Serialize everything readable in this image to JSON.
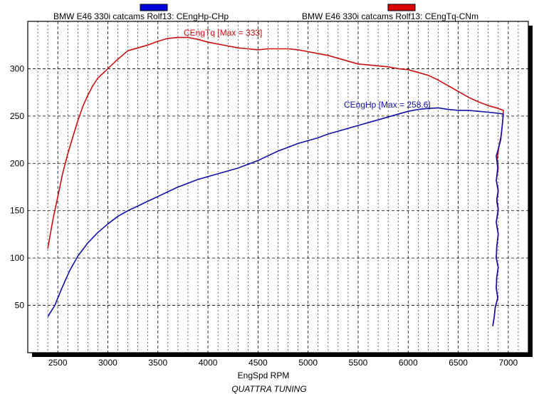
{
  "chart_data": {
    "type": "line",
    "xlabel": "EngSpd RPM",
    "ylabel": "",
    "footer": "QUATTRA TUNING",
    "xlim": [
      2200,
      7200
    ],
    "ylim": [
      0,
      350
    ],
    "x_ticks": [
      2500,
      3000,
      3500,
      4000,
      4500,
      5000,
      5500,
      6000,
      6500,
      7000
    ],
    "y_ticks": [
      50,
      100,
      150,
      200,
      250,
      300
    ],
    "grid": true,
    "legend_position": "top",
    "series": [
      {
        "name": "BMW E46 330i catcams Rolf13: CEngHp-CHp",
        "color": "#1010aa",
        "legend_color": "#0000dd",
        "annotation": "CEngHp [Max = 258.6]",
        "points": [
          [
            2400,
            38
          ],
          [
            2470,
            50
          ],
          [
            2540,
            68
          ],
          [
            2620,
            87
          ],
          [
            2700,
            102
          ],
          [
            2800,
            116
          ],
          [
            2900,
            127
          ],
          [
            3000,
            136
          ],
          [
            3100,
            144
          ],
          [
            3200,
            150
          ],
          [
            3300,
            155
          ],
          [
            3400,
            160
          ],
          [
            3500,
            165
          ],
          [
            3600,
            170
          ],
          [
            3700,
            175
          ],
          [
            3800,
            179
          ],
          [
            3900,
            183
          ],
          [
            4000,
            186
          ],
          [
            4100,
            189
          ],
          [
            4200,
            192
          ],
          [
            4300,
            195
          ],
          [
            4400,
            199
          ],
          [
            4500,
            203
          ],
          [
            4600,
            208
          ],
          [
            4700,
            213
          ],
          [
            4800,
            217
          ],
          [
            4900,
            221
          ],
          [
            5000,
            224
          ],
          [
            5100,
            227
          ],
          [
            5200,
            231
          ],
          [
            5300,
            234
          ],
          [
            5400,
            237
          ],
          [
            5500,
            240
          ],
          [
            5600,
            243
          ],
          [
            5700,
            246
          ],
          [
            5800,
            249
          ],
          [
            5900,
            252
          ],
          [
            6000,
            255
          ],
          [
            6100,
            257
          ],
          [
            6200,
            258
          ],
          [
            6300,
            258.6
          ],
          [
            6400,
            257
          ],
          [
            6500,
            256
          ],
          [
            6600,
            256
          ],
          [
            6700,
            255
          ],
          [
            6800,
            254
          ],
          [
            6900,
            253
          ],
          [
            6950,
            252
          ],
          [
            6940,
            240
          ],
          [
            6925,
            225
          ],
          [
            6900,
            215
          ],
          [
            6880,
            208
          ],
          [
            6895,
            195
          ],
          [
            6880,
            182
          ],
          [
            6900,
            172
          ],
          [
            6885,
            162
          ],
          [
            6900,
            152
          ],
          [
            6880,
            138
          ],
          [
            6900,
            125
          ],
          [
            6885,
            112
          ],
          [
            6880,
            100
          ],
          [
            6900,
            90
          ],
          [
            6885,
            80
          ],
          [
            6880,
            68
          ],
          [
            6895,
            58
          ],
          [
            6870,
            48
          ],
          [
            6860,
            38
          ],
          [
            6845,
            28
          ]
        ]
      },
      {
        "name": "BMW E46 330i catcams Rolf13: CEngTq-CNm",
        "color": "#cc1010",
        "legend_color": "#dd0000",
        "annotation": "CEngTq [Max = 333]",
        "points": [
          [
            2400,
            110
          ],
          [
            2450,
            140
          ],
          [
            2500,
            165
          ],
          [
            2550,
            190
          ],
          [
            2600,
            210
          ],
          [
            2650,
            228
          ],
          [
            2700,
            245
          ],
          [
            2750,
            260
          ],
          [
            2800,
            272
          ],
          [
            2850,
            282
          ],
          [
            2900,
            290
          ],
          [
            3000,
            300
          ],
          [
            3100,
            310
          ],
          [
            3200,
            319
          ],
          [
            3300,
            322
          ],
          [
            3400,
            325
          ],
          [
            3500,
            329
          ],
          [
            3600,
            332
          ],
          [
            3700,
            333
          ],
          [
            3800,
            333
          ],
          [
            3900,
            331
          ],
          [
            4000,
            328
          ],
          [
            4100,
            326
          ],
          [
            4200,
            324
          ],
          [
            4300,
            322
          ],
          [
            4400,
            321
          ],
          [
            4500,
            320
          ],
          [
            4600,
            321
          ],
          [
            4700,
            321
          ],
          [
            4800,
            321
          ],
          [
            4900,
            320
          ],
          [
            5000,
            318
          ],
          [
            5100,
            316
          ],
          [
            5200,
            314
          ],
          [
            5300,
            311
          ],
          [
            5400,
            308
          ],
          [
            5500,
            305
          ],
          [
            5600,
            304
          ],
          [
            5700,
            303
          ],
          [
            5800,
            302
          ],
          [
            5900,
            300
          ],
          [
            6000,
            299
          ],
          [
            6100,
            296
          ],
          [
            6200,
            293
          ],
          [
            6300,
            288
          ],
          [
            6400,
            282
          ],
          [
            6500,
            276
          ],
          [
            6600,
            270
          ],
          [
            6700,
            265
          ],
          [
            6800,
            261
          ],
          [
            6900,
            258
          ],
          [
            6950,
            256
          ],
          [
            6945,
            245
          ],
          [
            6930,
            230
          ],
          [
            6910,
            220
          ],
          [
            6890,
            205
          ],
          [
            6900,
            195
          ],
          [
            6880,
            182
          ],
          [
            6900,
            170
          ],
          [
            6885,
            160
          ],
          [
            6900,
            150
          ],
          [
            6880,
            138
          ],
          [
            6900,
            125
          ],
          [
            6885,
            112
          ],
          [
            6880,
            100
          ],
          [
            6900,
            90
          ],
          [
            6885,
            80
          ],
          [
            6880,
            68
          ],
          [
            6895,
            58
          ],
          [
            6870,
            48
          ],
          [
            6860,
            38
          ],
          [
            6845,
            28
          ]
        ]
      }
    ]
  }
}
